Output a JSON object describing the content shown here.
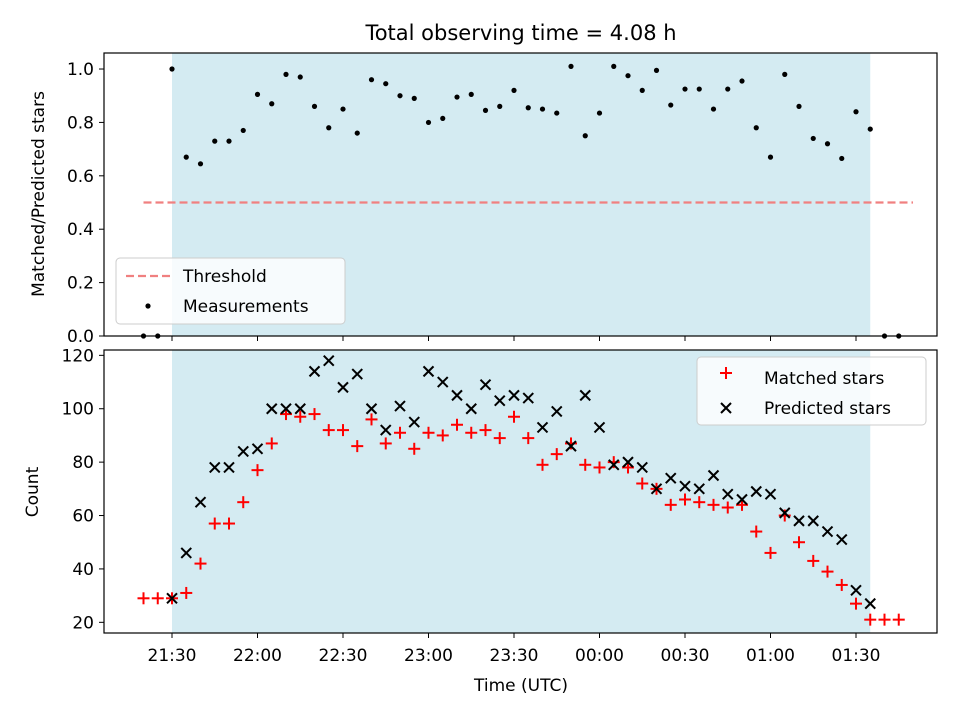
{
  "chart_data": [
    {
      "type": "scatter",
      "title": "Total observing time = 4.08 h",
      "ylabel": "Matched/Predicted stars",
      "ylim": [
        0,
        1.06
      ],
      "yticks": [
        "0.0",
        "0.2",
        "0.4",
        "0.6",
        "0.8",
        "1.0"
      ],
      "observing_window": [
        "21:30",
        "01:35"
      ],
      "threshold": {
        "label": "Threshold",
        "value": 0.5,
        "x_range": [
          "21:20",
          "01:50"
        ],
        "color": "#f08080"
      },
      "legend": {
        "position": "lower-left",
        "entries": [
          "Threshold",
          "Measurements"
        ]
      },
      "series": [
        {
          "name": "Measurements",
          "color": "#000000",
          "x": [
            "21:20",
            "21:25",
            "21:30",
            "21:35",
            "21:40",
            "21:45",
            "21:50",
            "21:55",
            "22:00",
            "22:05",
            "22:10",
            "22:15",
            "22:20",
            "22:25",
            "22:30",
            "22:35",
            "22:40",
            "22:45",
            "22:50",
            "22:55",
            "23:00",
            "23:05",
            "23:10",
            "23:15",
            "23:20",
            "23:25",
            "23:30",
            "23:35",
            "23:40",
            "23:45",
            "23:50",
            "23:55",
            "00:00",
            "00:05",
            "00:10",
            "00:15",
            "00:20",
            "00:25",
            "00:30",
            "00:35",
            "00:40",
            "00:45",
            "00:50",
            "00:55",
            "01:00",
            "01:05",
            "01:10",
            "01:15",
            "01:20",
            "01:25",
            "01:30",
            "01:35",
            "01:40",
            "01:45"
          ],
          "y": [
            0,
            0,
            1.0,
            0.67,
            0.645,
            0.73,
            0.73,
            0.77,
            0.905,
            0.87,
            0.98,
            0.97,
            0.86,
            0.78,
            0.85,
            0.76,
            0.96,
            0.945,
            0.9,
            0.89,
            0.8,
            0.815,
            0.895,
            0.905,
            0.845,
            0.86,
            0.92,
            0.855,
            0.85,
            0.835,
            1.01,
            0.75,
            0.835,
            1.01,
            0.975,
            0.92,
            0.995,
            0.865,
            0.925,
            0.925,
            0.85,
            0.925,
            0.955,
            0.78,
            0.67,
            0.98,
            0.86,
            0.74,
            0.72,
            0.665,
            0.84,
            0.775,
            0,
            0
          ]
        }
      ]
    },
    {
      "type": "scatter",
      "ylabel": "Count",
      "xlabel": "Time (UTC)",
      "ylim": [
        16,
        122
      ],
      "yticks": [
        "20",
        "40",
        "60",
        "80",
        "100",
        "120"
      ],
      "xticks": [
        "21:30",
        "22:00",
        "22:30",
        "23:00",
        "23:30",
        "00:00",
        "00:30",
        "01:00",
        "01:30"
      ],
      "observing_window": [
        "21:30",
        "01:35"
      ],
      "legend": {
        "position": "upper-right",
        "entries": [
          "Matched stars",
          "Predicted stars"
        ]
      },
      "series": [
        {
          "name": "Matched stars",
          "marker": "plus",
          "color": "#ff0000",
          "x": [
            "21:20",
            "21:25",
            "21:30",
            "21:35",
            "21:40",
            "21:45",
            "21:50",
            "21:55",
            "22:00",
            "22:05",
            "22:10",
            "22:15",
            "22:20",
            "22:25",
            "22:30",
            "22:35",
            "22:40",
            "22:45",
            "22:50",
            "22:55",
            "23:00",
            "23:05",
            "23:10",
            "23:15",
            "23:20",
            "23:25",
            "23:30",
            "23:35",
            "23:40",
            "23:45",
            "23:50",
            "23:55",
            "00:00",
            "00:05",
            "00:10",
            "00:15",
            "00:20",
            "00:25",
            "00:30",
            "00:35",
            "00:40",
            "00:45",
            "00:50",
            "00:55",
            "01:00",
            "01:05",
            "01:10",
            "01:15",
            "01:20",
            "01:25",
            "01:30",
            "01:35",
            "01:40",
            "01:45"
          ],
          "y": [
            29,
            29,
            29,
            31,
            42,
            57,
            57,
            65,
            77,
            87,
            98,
            97,
            98,
            92,
            92,
            86,
            96,
            87,
            91,
            85,
            91,
            90,
            94,
            91,
            92,
            89,
            97,
            89,
            79,
            83,
            87,
            79,
            78,
            80,
            78,
            72,
            70,
            64,
            66,
            65,
            64,
            63,
            64,
            54,
            46,
            60,
            50,
            43,
            39,
            34,
            27,
            21,
            21,
            21
          ]
        },
        {
          "name": "Predicted stars",
          "marker": "x",
          "color": "#000000",
          "x": [
            "21:30",
            "21:35",
            "21:40",
            "21:45",
            "21:50",
            "21:55",
            "22:00",
            "22:05",
            "22:10",
            "22:15",
            "22:20",
            "22:25",
            "22:30",
            "22:35",
            "22:40",
            "22:45",
            "22:50",
            "22:55",
            "23:00",
            "23:05",
            "23:10",
            "23:15",
            "23:20",
            "23:25",
            "23:30",
            "23:35",
            "23:40",
            "23:45",
            "23:50",
            "23:55",
            "00:00",
            "00:05",
            "00:10",
            "00:15",
            "00:20",
            "00:25",
            "00:30",
            "00:35",
            "00:40",
            "00:45",
            "00:50",
            "00:55",
            "01:00",
            "01:05",
            "01:10",
            "01:15",
            "01:20",
            "01:25",
            "01:30",
            "01:35"
          ],
          "y": [
            29,
            46,
            65,
            78,
            78,
            84,
            85,
            100,
            100,
            100,
            114,
            118,
            108,
            113,
            100,
            92,
            101,
            95,
            114,
            110,
            105,
            100,
            109,
            103,
            105,
            104,
            93,
            99,
            86,
            105,
            93,
            79,
            80,
            78,
            70,
            74,
            71,
            70,
            75,
            68,
            66,
            69,
            68,
            61,
            58,
            58,
            54,
            51,
            32,
            27
          ]
        }
      ]
    }
  ]
}
